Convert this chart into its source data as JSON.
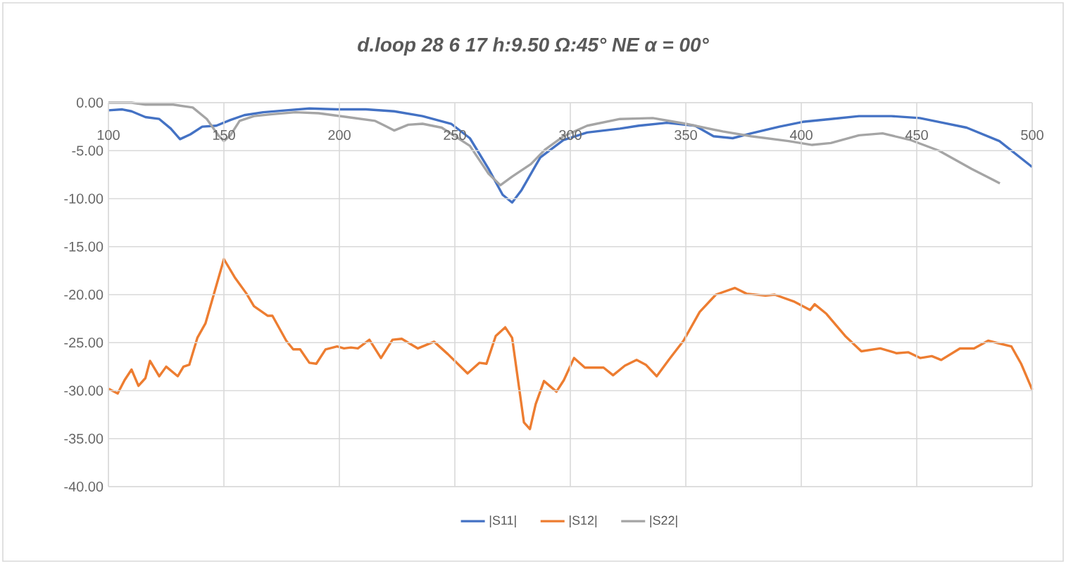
{
  "chart_data": {
    "type": "line",
    "title": "d.loop 28 6 17 h:9.50 Ω:45° NE α = 00°",
    "xlim": [
      100,
      500
    ],
    "xticks": [
      100,
      150,
      200,
      250,
      300,
      350,
      400,
      450,
      500
    ],
    "ylim": [
      -40,
      0
    ],
    "yticks": [
      {
        "value": -40,
        "label": "-40.00"
      },
      {
        "value": -35,
        "label": "-35.00"
      },
      {
        "value": -30,
        "label": "-30.00"
      },
      {
        "value": -25,
        "label": "-25.00"
      },
      {
        "value": -20,
        "label": "-20.00"
      },
      {
        "value": -15,
        "label": "-15.00"
      },
      {
        "value": -10,
        "label": "-10.00"
      },
      {
        "value": -5,
        "label": "-5.00"
      },
      {
        "value": 0,
        "label": "0.00"
      }
    ],
    "grid": true,
    "legend": "bottom",
    "series": [
      {
        "name": "|S11|",
        "color": "#4472c4",
        "x": [
          100,
          106,
          110,
          116,
          122,
          127,
          131,
          135.5,
          140.6,
          146.7,
          152.8,
          158.8,
          167,
          177,
          187,
          199,
          211.5,
          223.7,
          236,
          248.4,
          256.5,
          264.6,
          270.7,
          274.8,
          278.9,
          287,
          297,
          307.3,
          321.5,
          329.6,
          341.8,
          354,
          362,
          370.3,
          378.3,
          390.5,
          400.6,
          412.8,
          425,
          439,
          451.3,
          461.4,
          471.6,
          485.8,
          500
        ],
        "values": [
          -0.8,
          -0.7,
          -0.9,
          -1.5,
          -1.7,
          -2.7,
          -3.8,
          -3.3,
          -2.5,
          -2.4,
          -1.8,
          -1.3,
          -1.0,
          -0.8,
          -0.6,
          -0.7,
          -0.7,
          -0.9,
          -1.4,
          -2.2,
          -3.7,
          -6.9,
          -9.6,
          -10.4,
          -9.1,
          -5.7,
          -3.9,
          -3.1,
          -2.7,
          -2.4,
          -2.1,
          -2.4,
          -3.5,
          -3.7,
          -3.2,
          -2.5,
          -2.0,
          -1.7,
          -1.4,
          -1.4,
          -1.6,
          -2.1,
          -2.6,
          -4.0,
          -6.7
        ]
      },
      {
        "name": "|S12|",
        "color": "#ed7d31",
        "x": [
          100,
          104,
          107,
          110,
          113,
          116,
          118,
          122,
          125,
          130,
          132.5,
          135,
          138.5,
          142,
          150,
          154.7,
          159.8,
          163,
          169,
          171,
          177,
          180,
          183,
          187,
          190,
          194,
          199,
          202,
          205,
          208,
          213,
          218,
          223,
          227,
          234,
          241,
          247,
          255.5,
          260.6,
          263.7,
          267.7,
          271.8,
          274.8,
          279.9,
          282.5,
          285,
          288.6,
          294,
          297.2,
          301.6,
          306.3,
          314.4,
          318.5,
          323.6,
          328.7,
          332.7,
          337.4,
          342.9,
          349,
          356,
          363,
          371.3,
          376.3,
          384.5,
          388.5,
          396.7,
          403.8,
          405.8,
          410.9,
          419,
          426,
          434.2,
          441.3,
          446.4,
          451.5,
          456.5,
          460.6,
          468.7,
          474.8,
          480.9,
          491,
          495.2,
          500
        ],
        "values": [
          -29.8,
          -30.3,
          -28.9,
          -27.8,
          -29.5,
          -28.7,
          -26.9,
          -28.5,
          -27.5,
          -28.5,
          -27.5,
          -27.3,
          -24.5,
          -23,
          -16.3,
          -18.2,
          -19.9,
          -21.2,
          -22.2,
          -22.2,
          -24.8,
          -25.7,
          -25.7,
          -27.1,
          -27.2,
          -25.7,
          -25.4,
          -25.6,
          -25.5,
          -25.6,
          -24.7,
          -26.6,
          -24.7,
          -24.6,
          -25.6,
          -24.9,
          -26.2,
          -28.2,
          -27.1,
          -27.2,
          -24.3,
          -23.4,
          -24.5,
          -33.3,
          -34.0,
          -31.4,
          -29.0,
          -30.1,
          -28.9,
          -26.6,
          -27.6,
          -27.6,
          -28.4,
          -27.4,
          -26.8,
          -27.3,
          -28.5,
          -26.7,
          -24.8,
          -21.8,
          -20.0,
          -19.3,
          -19.9,
          -20.1,
          -20.0,
          -20.7,
          -21.6,
          -21.0,
          -22.0,
          -24.3,
          -25.9,
          -25.6,
          -26.1,
          -26.0,
          -26.6,
          -26.4,
          -26.8,
          -25.6,
          -25.6,
          -24.8,
          -25.4,
          -27.2,
          -29.9
        ]
      },
      {
        "name": "|S22|",
        "color": "#a5a5a5",
        "x": [
          100,
          110,
          116,
          128,
          136.5,
          142.6,
          147.6,
          150,
          152.8,
          156.8,
          163,
          171,
          181,
          191,
          203.5,
          215.5,
          219.7,
          223.7,
          229.8,
          236,
          244.3,
          256.5,
          264.6,
          269.7,
          274.8,
          282.9,
          289,
          297,
          307.3,
          321.5,
          335.7,
          350,
          366,
          378.3,
          394.5,
          404.7,
          412.8,
          425,
          435.2,
          447.4,
          459.6,
          473.8,
          486
        ],
        "values": [
          0,
          0,
          -0.2,
          -0.2,
          -0.5,
          -1.7,
          -3.4,
          -4.0,
          -3.4,
          -1.9,
          -1.4,
          -1.2,
          -1.0,
          -1.1,
          -1.5,
          -1.9,
          -2.4,
          -2.9,
          -2.3,
          -2.2,
          -2.6,
          -4.5,
          -7.4,
          -8.6,
          -7.7,
          -6.4,
          -4.9,
          -3.5,
          -2.4,
          -1.7,
          -1.6,
          -2.2,
          -3.0,
          -3.5,
          -4.0,
          -4.4,
          -4.2,
          -3.4,
          -3.2,
          -3.9,
          -5.0,
          -6.9,
          -8.4
        ]
      }
    ]
  }
}
